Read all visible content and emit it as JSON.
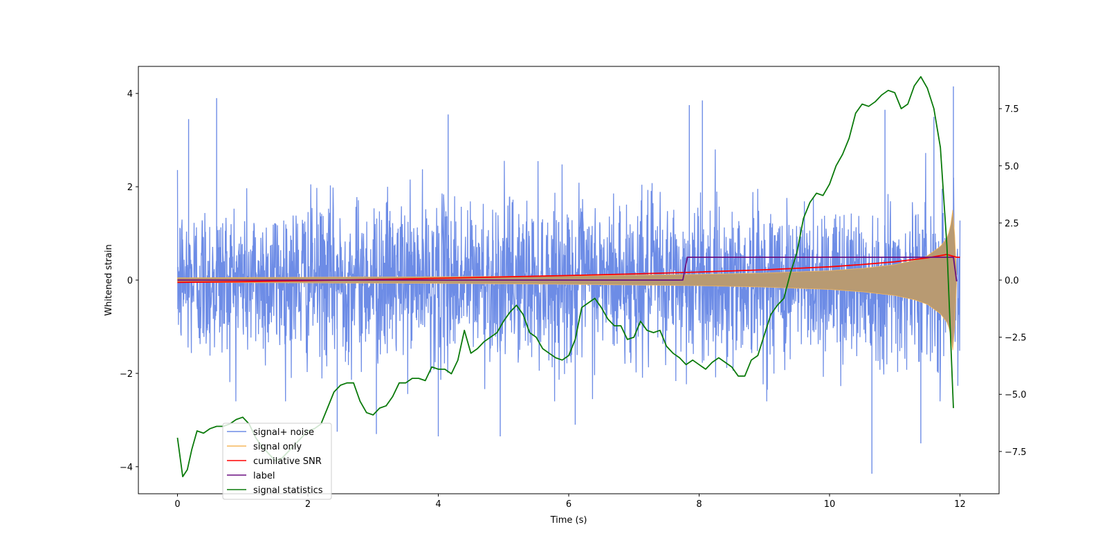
{
  "chart_data": {
    "type": "line",
    "title": "",
    "xlabel": "Time (s)",
    "ylabel": "Whitened strain",
    "y2label": "",
    "xlim": [
      -0.6,
      12.6
    ],
    "ylim": [
      -4.58,
      4.58
    ],
    "y2lim": [
      -9.35,
      9.35
    ],
    "x_ticks": [
      0,
      2,
      4,
      6,
      8,
      10,
      12
    ],
    "y_ticks": [
      4,
      2,
      0,
      -2,
      -4
    ],
    "y2_ticks": [
      7.5,
      5.0,
      2.5,
      0.0,
      -2.5,
      -5.0,
      -7.5
    ],
    "x_tick_labels": [
      "0",
      "2",
      "4",
      "6",
      "8",
      "10",
      "12"
    ],
    "y_tick_labels": [
      "4",
      "2",
      "0",
      "−2",
      "−4"
    ],
    "y2_tick_labels": [
      "7.5",
      "5.0",
      "2.5",
      "0.0",
      "−2.5",
      "−5.0",
      "−7.5"
    ],
    "grid": false,
    "legend_position": "lower-left",
    "colors": {
      "signal_noise": "#6d8ce6",
      "signal_only": "#f5b65a",
      "signal_only_fill": "#b89a72",
      "snr": "#ff0000",
      "label": "#6a0f80",
      "statistics": "#0a7a0a"
    },
    "series": [
      {
        "name": "signal+ noise",
        "axis": "left",
        "style": "noise",
        "noise_envelope": {
          "x": [
            0,
            12
          ],
          "typical_upper": [
            1.6,
            1.6
          ],
          "typical_lower": [
            -1.6,
            -1.6
          ],
          "peak_upper": [
            [
              0.6,
              3.9
            ],
            [
              0.17,
              3.45
            ],
            [
              7.85,
              3.75
            ],
            [
              8.05,
              3.85
            ],
            [
              10.85,
              3.65
            ],
            [
              11.6,
              3.5
            ],
            [
              11.9,
              4.15
            ],
            [
              4.15,
              3.55
            ]
          ],
          "peak_lower": [
            [
              10.65,
              -4.15
            ],
            [
              4.0,
              -3.35
            ],
            [
              3.05,
              -3.3
            ],
            [
              11.4,
              -3.5
            ],
            [
              2.45,
              -3.25
            ],
            [
              4.95,
              -3.35
            ],
            [
              6.1,
              -3.1
            ]
          ]
        }
      },
      {
        "name": "signal only",
        "axis": "left",
        "style": "chirp",
        "envelope": {
          "x": [
            0,
            2,
            4,
            6,
            8,
            9,
            10,
            10.5,
            11,
            11.3,
            11.5,
            11.7,
            11.8,
            11.85,
            11.9,
            11.95
          ],
          "amplitude": [
            0.05,
            0.06,
            0.07,
            0.09,
            0.12,
            0.15,
            0.2,
            0.25,
            0.33,
            0.42,
            0.52,
            0.72,
            0.9,
            1.1,
            1.6,
            0.0
          ]
        }
      },
      {
        "name": "cumilative SNR",
        "axis": "right",
        "x": [
          0,
          1,
          2,
          3,
          4,
          5,
          6,
          7,
          8,
          9,
          10,
          10.5,
          11,
          11.5,
          11.8,
          11.95,
          12
        ],
        "values": [
          -0.1,
          -0.07,
          -0.02,
          0.02,
          0.08,
          0.14,
          0.2,
          0.27,
          0.35,
          0.45,
          0.58,
          0.68,
          0.8,
          0.97,
          1.12,
          1.0,
          1.0
        ]
      },
      {
        "name": "label",
        "axis": "right",
        "x": [
          0,
          7.75,
          7.82,
          11.9,
          11.95
        ],
        "values": [
          0.0,
          0.0,
          1.0,
          1.0,
          -0.05
        ]
      },
      {
        "name": "signal statistics",
        "axis": "right",
        "x": [
          0,
          0.08,
          0.15,
          0.22,
          0.3,
          0.4,
          0.5,
          0.6,
          0.7,
          0.8,
          0.9,
          1.0,
          1.1,
          1.2,
          1.3,
          1.4,
          1.5,
          1.6,
          1.7,
          1.8,
          1.9,
          2.0,
          2.1,
          2.2,
          2.3,
          2.4,
          2.5,
          2.6,
          2.7,
          2.8,
          2.9,
          3.0,
          3.1,
          3.2,
          3.3,
          3.4,
          3.5,
          3.6,
          3.7,
          3.8,
          3.9,
          4.0,
          4.1,
          4.2,
          4.3,
          4.4,
          4.5,
          4.6,
          4.7,
          4.8,
          4.9,
          5.0,
          5.1,
          5.2,
          5.3,
          5.4,
          5.5,
          5.6,
          5.7,
          5.8,
          5.9,
          6.0,
          6.1,
          6.2,
          6.3,
          6.4,
          6.5,
          6.6,
          6.7,
          6.8,
          6.9,
          7.0,
          7.1,
          7.2,
          7.3,
          7.4,
          7.5,
          7.6,
          7.7,
          7.8,
          7.9,
          8.0,
          8.1,
          8.2,
          8.3,
          8.4,
          8.5,
          8.6,
          8.7,
          8.8,
          8.9,
          9.0,
          9.1,
          9.2,
          9.3,
          9.4,
          9.5,
          9.6,
          9.7,
          9.8,
          9.9,
          10.0,
          10.1,
          10.2,
          10.3,
          10.4,
          10.5,
          10.6,
          10.7,
          10.8,
          10.9,
          11.0,
          11.1,
          11.2,
          11.3,
          11.4,
          11.5,
          11.6,
          11.7,
          11.8,
          11.9
        ],
        "values": [
          -6.9,
          -8.6,
          -8.3,
          -7.4,
          -6.6,
          -6.7,
          -6.5,
          -6.4,
          -6.4,
          -6.3,
          -6.1,
          -6.0,
          -6.3,
          -6.9,
          -7.3,
          -7.6,
          -7.9,
          -7.8,
          -7.5,
          -7.2,
          -6.9,
          -6.6,
          -6.5,
          -6.3,
          -5.6,
          -4.9,
          -4.6,
          -4.5,
          -4.5,
          -5.3,
          -5.8,
          -5.9,
          -5.6,
          -5.5,
          -5.1,
          -4.5,
          -4.5,
          -4.3,
          -4.3,
          -4.4,
          -3.8,
          -3.9,
          -3.9,
          -4.1,
          -3.5,
          -2.2,
          -3.2,
          -3.0,
          -2.7,
          -2.5,
          -2.3,
          -1.8,
          -1.4,
          -1.1,
          -1.5,
          -2.3,
          -2.5,
          -3.0,
          -3.2,
          -3.4,
          -3.5,
          -3.3,
          -2.6,
          -1.2,
          -1.0,
          -0.8,
          -1.2,
          -1.7,
          -2.0,
          -2.0,
          -2.6,
          -2.5,
          -1.8,
          -2.2,
          -2.3,
          -2.2,
          -2.9,
          -3.2,
          -3.4,
          -3.7,
          -3.5,
          -3.7,
          -3.9,
          -3.6,
          -3.4,
          -3.6,
          -3.8,
          -4.2,
          -4.2,
          -3.5,
          -3.3,
          -2.4,
          -1.5,
          -1.1,
          -0.8,
          0.3,
          1.2,
          2.7,
          3.4,
          3.8,
          3.7,
          4.2,
          5.0,
          5.5,
          6.2,
          7.3,
          7.7,
          7.6,
          7.8,
          8.1,
          8.3,
          8.2,
          7.5,
          7.7,
          8.5,
          8.9,
          8.4,
          7.5,
          5.8,
          1.5,
          -5.6
        ]
      }
    ]
  }
}
